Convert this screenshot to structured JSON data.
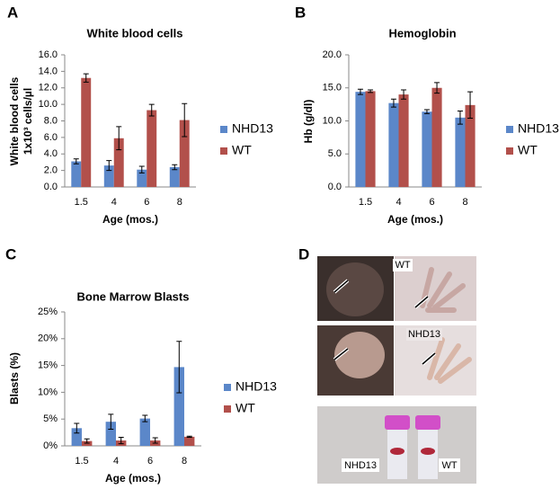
{
  "panel_labels": [
    "A",
    "B",
    "C",
    "D"
  ],
  "photo_labels": [
    "WT",
    "NHD13",
    "NHD13",
    "WT"
  ],
  "chart_data": [
    {
      "type": "bar",
      "title": "White blood cells",
      "ylabel": [
        "White blood cells",
        "1x10³ cells/µl"
      ],
      "xlabel": "Age (mos.)",
      "categories": [
        "1.5",
        "4",
        "6",
        "8"
      ],
      "series": [
        {
          "name": "NHD13",
          "color": "#5b87c9",
          "values": [
            3.1,
            2.6,
            2.1,
            2.4
          ],
          "errors": [
            0.3,
            0.6,
            0.4,
            0.3
          ]
        },
        {
          "name": "WT",
          "color": "#b2504b",
          "values": [
            13.2,
            5.9,
            9.3,
            8.1
          ],
          "errors": [
            0.5,
            1.4,
            0.7,
            2.0
          ]
        }
      ],
      "ylim": [
        0,
        16
      ],
      "yticks": [
        {
          "value": 0,
          "label": "0.0"
        },
        {
          "value": 2,
          "label": "2.0"
        },
        {
          "value": 4,
          "label": "4.0"
        },
        {
          "value": 6,
          "label": "6.0"
        },
        {
          "value": 8,
          "label": "8.0"
        },
        {
          "value": 10,
          "label": "10.0"
        },
        {
          "value": 12,
          "label": "12.0"
        },
        {
          "value": 14,
          "label": "14.0"
        },
        {
          "value": 16,
          "label": "16.0"
        }
      ],
      "grid": false,
      "legend": "right"
    },
    {
      "type": "bar",
      "title": "Hemoglobin",
      "ylabel": [
        "Hb (g/dl)"
      ],
      "xlabel": "Age (mos.)",
      "categories": [
        "1.5",
        "4",
        "6",
        "8"
      ],
      "series": [
        {
          "name": "NHD13",
          "color": "#5b87c9",
          "values": [
            14.4,
            12.7,
            11.4,
            10.5
          ],
          "errors": [
            0.4,
            0.6,
            0.3,
            1.0
          ]
        },
        {
          "name": "WT",
          "color": "#b2504b",
          "values": [
            14.5,
            14.0,
            15.0,
            12.4
          ],
          "errors": [
            0.2,
            0.7,
            0.8,
            2.0
          ]
        }
      ],
      "ylim": [
        0,
        20
      ],
      "yticks": [
        {
          "value": 0,
          "label": "0.0"
        },
        {
          "value": 5,
          "label": "5.0"
        },
        {
          "value": 10,
          "label": "10.0"
        },
        {
          "value": 15,
          "label": "15.0"
        },
        {
          "value": 20,
          "label": "20.0"
        }
      ],
      "grid": false,
      "legend": "right"
    },
    {
      "type": "bar",
      "title": "Bone Marrow Blasts",
      "ylabel": [
        "Blasts (%)"
      ],
      "xlabel": "Age (mos.)",
      "categories": [
        "1.5",
        "4",
        "6",
        "8"
      ],
      "series": [
        {
          "name": "NHD13",
          "color": "#5b87c9",
          "values": [
            3.3,
            4.5,
            5.1,
            14.7
          ],
          "errors": [
            0.9,
            1.4,
            0.6,
            4.8
          ]
        },
        {
          "name": "WT",
          "color": "#b2504b",
          "values": [
            0.9,
            1.0,
            1.0,
            1.7
          ],
          "errors": [
            0.4,
            0.6,
            0.5,
            0.1
          ]
        }
      ],
      "ylim": [
        0,
        25
      ],
      "yticks": [
        {
          "value": 0,
          "label": "0%"
        },
        {
          "value": 5,
          "label": "5%"
        },
        {
          "value": 10,
          "label": "10%"
        },
        {
          "value": 15,
          "label": "15%"
        },
        {
          "value": 20,
          "label": "20%"
        },
        {
          "value": 25,
          "label": "25%"
        }
      ],
      "grid": false,
      "legend": "right"
    }
  ]
}
